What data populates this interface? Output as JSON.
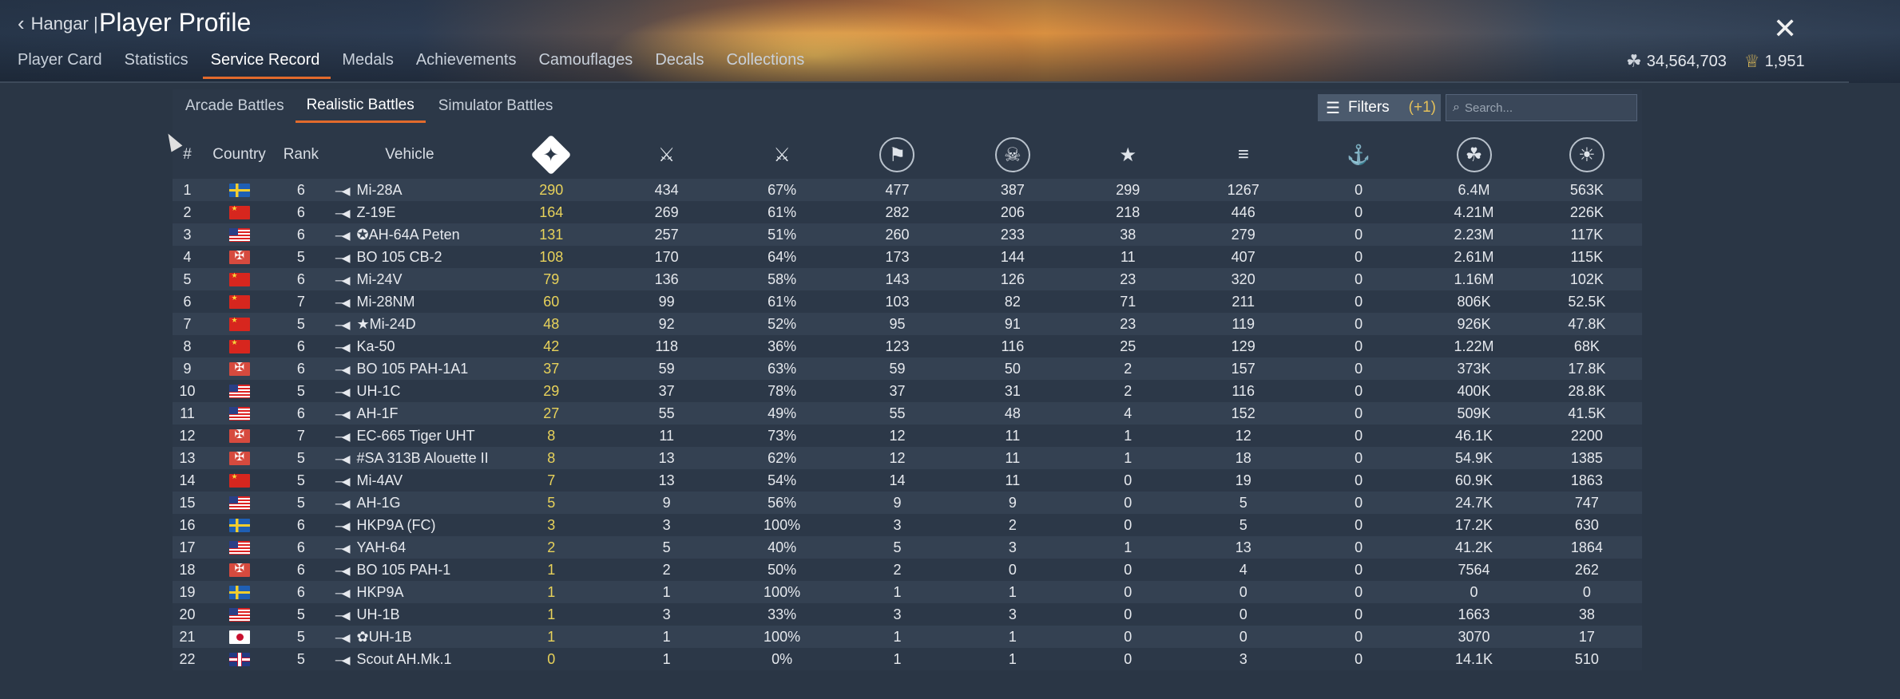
{
  "header": {
    "back_label": "Hangar |",
    "title": "Player Profile",
    "close_icon": "close-icon",
    "tabs": [
      "Player Card",
      "Statistics",
      "Service Record",
      "Medals",
      "Achievements",
      "Camouflages",
      "Decals",
      "Collections"
    ],
    "active_tab": "Service Record",
    "silver_lions": "34,564,703",
    "golden_eagles": "1,951"
  },
  "battle_modes": [
    "Arcade Battles",
    "Realistic Battles",
    "Simulator Battles"
  ],
  "active_mode": "Realistic Battles",
  "filters": {
    "label": "Filters",
    "count": "(+1)"
  },
  "search": {
    "placeholder": "Search..."
  },
  "table": {
    "columns": [
      "#",
      "Country",
      "Rank",
      "Vehicle"
    ],
    "icon_columns": [
      "ground-kills-icon",
      "battles-icon",
      "win-rate-icon",
      "respawns-icon",
      "deaths-icon",
      "air-kills-icon",
      "naval-kills-icon",
      "ship-kills-icon",
      "silver-lions-earned-icon",
      "research-points-icon"
    ],
    "rows": [
      {
        "n": "1",
        "country": "sweden",
        "rank": "6",
        "vehicle": "Mi-28A",
        "kills": "290",
        "battles": "434",
        "win": "67%",
        "c4": "477",
        "c5": "387",
        "c6": "299",
        "c7": "1267",
        "c8": "0",
        "sl": "6.4M",
        "rp": "563K"
      },
      {
        "n": "2",
        "country": "china",
        "rank": "6",
        "vehicle": "Z-19E",
        "kills": "164",
        "battles": "269",
        "win": "61%",
        "c4": "282",
        "c5": "206",
        "c6": "218",
        "c7": "446",
        "c8": "0",
        "sl": "4.21M",
        "rp": "226K"
      },
      {
        "n": "3",
        "country": "usa",
        "rank": "6",
        "vehicle": "✪AH-64A Peten",
        "kills": "131",
        "battles": "257",
        "win": "51%",
        "c4": "260",
        "c5": "233",
        "c6": "38",
        "c7": "279",
        "c8": "0",
        "sl": "2.23M",
        "rp": "117K"
      },
      {
        "n": "4",
        "country": "germany",
        "rank": "5",
        "vehicle": "BO 105 CB-2",
        "kills": "108",
        "battles": "170",
        "win": "64%",
        "c4": "173",
        "c5": "144",
        "c6": "11",
        "c7": "407",
        "c8": "0",
        "sl": "2.61M",
        "rp": "115K"
      },
      {
        "n": "5",
        "country": "china",
        "rank": "6",
        "vehicle": "Mi-24V",
        "kills": "79",
        "battles": "136",
        "win": "58%",
        "c4": "143",
        "c5": "126",
        "c6": "23",
        "c7": "320",
        "c8": "0",
        "sl": "1.16M",
        "rp": "102K"
      },
      {
        "n": "6",
        "country": "china",
        "rank": "7",
        "vehicle": "Mi-28NM",
        "kills": "60",
        "battles": "99",
        "win": "61%",
        "c4": "103",
        "c5": "82",
        "c6": "71",
        "c7": "211",
        "c8": "0",
        "sl": "806K",
        "rp": "52.5K"
      },
      {
        "n": "7",
        "country": "china",
        "rank": "5",
        "vehicle": "★Mi-24D",
        "kills": "48",
        "battles": "92",
        "win": "52%",
        "c4": "95",
        "c5": "91",
        "c6": "23",
        "c7": "119",
        "c8": "0",
        "sl": "926K",
        "rp": "47.8K"
      },
      {
        "n": "8",
        "country": "china",
        "rank": "6",
        "vehicle": "Ka-50",
        "kills": "42",
        "battles": "118",
        "win": "36%",
        "c4": "123",
        "c5": "116",
        "c6": "25",
        "c7": "129",
        "c8": "0",
        "sl": "1.22M",
        "rp": "68K"
      },
      {
        "n": "9",
        "country": "germany",
        "rank": "6",
        "vehicle": "BO 105 PAH-1A1",
        "kills": "37",
        "battles": "59",
        "win": "63%",
        "c4": "59",
        "c5": "50",
        "c6": "2",
        "c7": "157",
        "c8": "0",
        "sl": "373K",
        "rp": "17.8K"
      },
      {
        "n": "10",
        "country": "usa",
        "rank": "5",
        "vehicle": "UH-1C",
        "kills": "29",
        "battles": "37",
        "win": "78%",
        "c4": "37",
        "c5": "31",
        "c6": "2",
        "c7": "116",
        "c8": "0",
        "sl": "400K",
        "rp": "28.8K"
      },
      {
        "n": "11",
        "country": "usa",
        "rank": "6",
        "vehicle": "AH-1F",
        "kills": "27",
        "battles": "55",
        "win": "49%",
        "c4": "55",
        "c5": "48",
        "c6": "4",
        "c7": "152",
        "c8": "0",
        "sl": "509K",
        "rp": "41.5K"
      },
      {
        "n": "12",
        "country": "germany",
        "rank": "7",
        "vehicle": "EC-665 Tiger UHT",
        "kills": "8",
        "battles": "11",
        "win": "73%",
        "c4": "12",
        "c5": "11",
        "c6": "1",
        "c7": "12",
        "c8": "0",
        "sl": "46.1K",
        "rp": "2200"
      },
      {
        "n": "13",
        "country": "germany",
        "rank": "5",
        "vehicle": "#SA 313B Alouette II",
        "kills": "8",
        "battles": "13",
        "win": "62%",
        "c4": "12",
        "c5": "11",
        "c6": "1",
        "c7": "18",
        "c8": "0",
        "sl": "54.9K",
        "rp": "1385"
      },
      {
        "n": "14",
        "country": "china",
        "rank": "5",
        "vehicle": "Mi-4AV",
        "kills": "7",
        "battles": "13",
        "win": "54%",
        "c4": "14",
        "c5": "11",
        "c6": "0",
        "c7": "19",
        "c8": "0",
        "sl": "60.9K",
        "rp": "1863"
      },
      {
        "n": "15",
        "country": "usa",
        "rank": "5",
        "vehicle": "AH-1G",
        "kills": "5",
        "battles": "9",
        "win": "56%",
        "c4": "9",
        "c5": "9",
        "c6": "0",
        "c7": "5",
        "c8": "0",
        "sl": "24.7K",
        "rp": "747"
      },
      {
        "n": "16",
        "country": "sweden",
        "rank": "6",
        "vehicle": "HKP9A (FC)",
        "kills": "3",
        "battles": "3",
        "win": "100%",
        "c4": "3",
        "c5": "2",
        "c6": "0",
        "c7": "5",
        "c8": "0",
        "sl": "17.2K",
        "rp": "630"
      },
      {
        "n": "17",
        "country": "usa",
        "rank": "6",
        "vehicle": "YAH-64",
        "kills": "2",
        "battles": "5",
        "win": "40%",
        "c4": "5",
        "c5": "3",
        "c6": "1",
        "c7": "13",
        "c8": "0",
        "sl": "41.2K",
        "rp": "1864"
      },
      {
        "n": "18",
        "country": "germany",
        "rank": "6",
        "vehicle": "BO 105 PAH-1",
        "kills": "1",
        "battles": "2",
        "win": "50%",
        "c4": "2",
        "c5": "0",
        "c6": "0",
        "c7": "4",
        "c8": "0",
        "sl": "7564",
        "rp": "262"
      },
      {
        "n": "19",
        "country": "sweden",
        "rank": "6",
        "vehicle": "HKP9A",
        "kills": "1",
        "battles": "1",
        "win": "100%",
        "c4": "1",
        "c5": "1",
        "c6": "0",
        "c7": "0",
        "c8": "0",
        "sl": "0",
        "rp": "0"
      },
      {
        "n": "20",
        "country": "usa",
        "rank": "5",
        "vehicle": "UH-1B",
        "kills": "1",
        "battles": "3",
        "win": "33%",
        "c4": "3",
        "c5": "3",
        "c6": "0",
        "c7": "0",
        "c8": "0",
        "sl": "1663",
        "rp": "38"
      },
      {
        "n": "21",
        "country": "japan",
        "rank": "5",
        "vehicle": "✿UH-1B",
        "kills": "1",
        "battles": "1",
        "win": "100%",
        "c4": "1",
        "c5": "1",
        "c6": "0",
        "c7": "0",
        "c8": "0",
        "sl": "3070",
        "rp": "17"
      },
      {
        "n": "22",
        "country": "uk",
        "rank": "5",
        "vehicle": "Scout AH.Mk.1",
        "kills": "0",
        "battles": "1",
        "win": "0%",
        "c4": "1",
        "c5": "1",
        "c6": "0",
        "c7": "3",
        "c8": "0",
        "sl": "14.1K",
        "rp": "510"
      }
    ]
  },
  "colors": {
    "accent": "#e26a2c",
    "kills_highlight": "#e8d25a",
    "panel": "#2c3848"
  }
}
